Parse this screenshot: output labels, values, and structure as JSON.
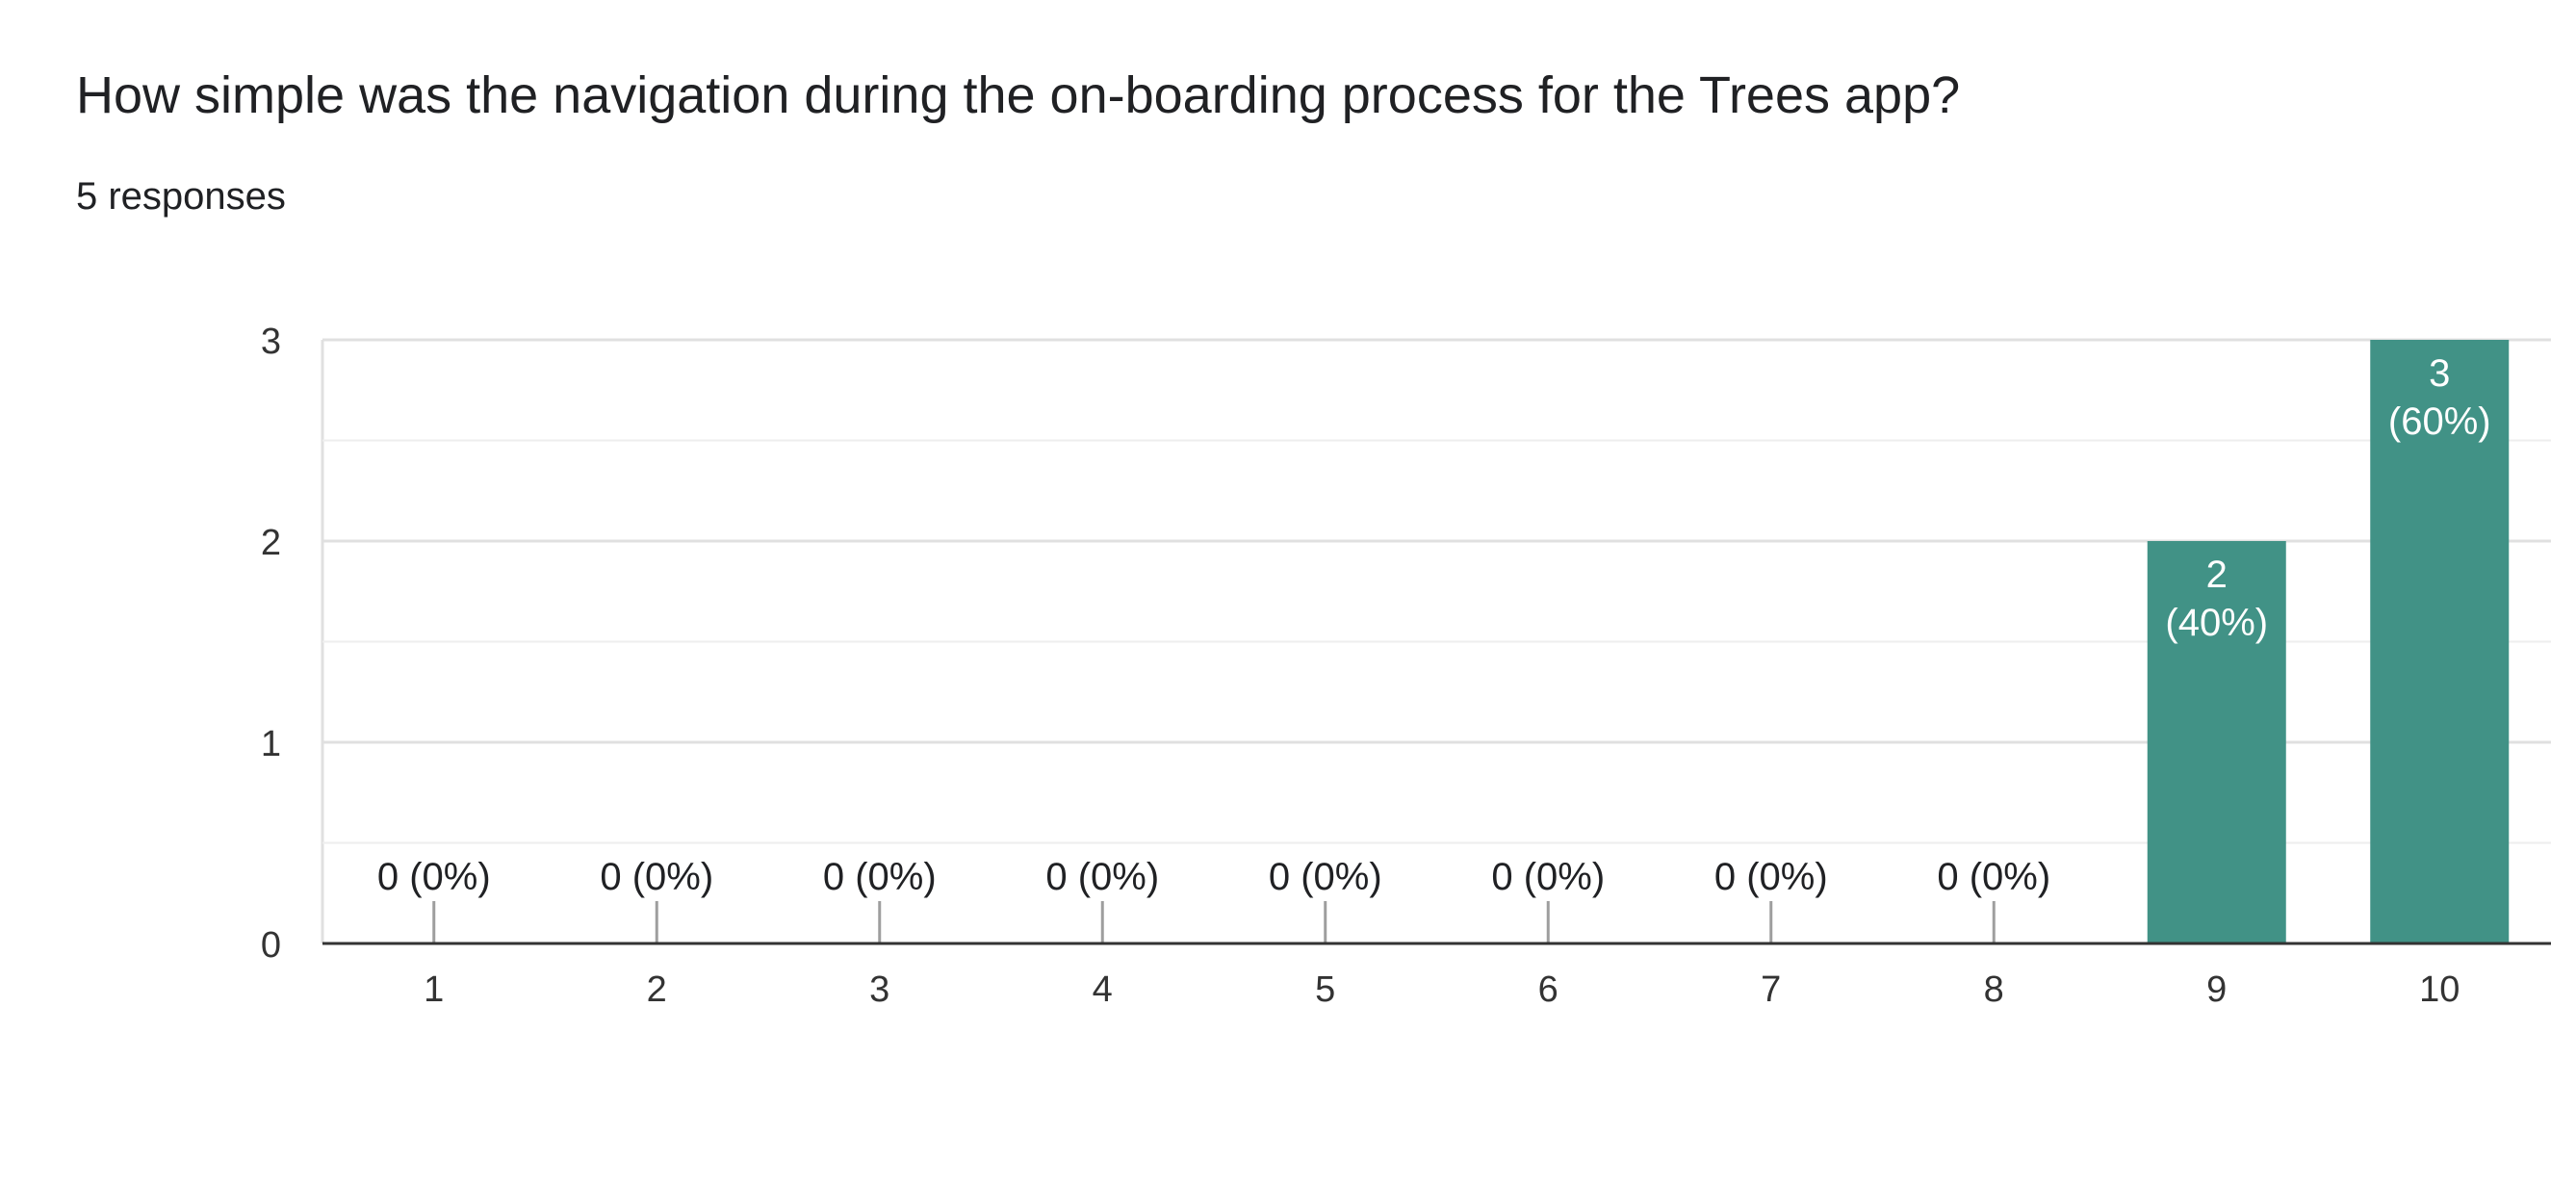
{
  "question": {
    "title": "How simple was the navigation during the on-boarding process for the Trees app?",
    "response_count": "5 responses"
  },
  "colors": {
    "bar": "#419286",
    "bar_label": "#ffffff",
    "text": "#202124",
    "tick_text": "#333333",
    "grid_major": "#e0e0e0",
    "grid_minor": "#eeeeee",
    "baseline": "#333333",
    "zero_marker": "#9e9e9e"
  },
  "chart_data": {
    "type": "bar",
    "categories": [
      "1",
      "2",
      "3",
      "4",
      "5",
      "6",
      "7",
      "8",
      "9",
      "10"
    ],
    "values": [
      0,
      0,
      0,
      0,
      0,
      0,
      0,
      0,
      2,
      3
    ],
    "data_labels": [
      "0 (0%)",
      "0 (0%)",
      "0 (0%)",
      "0 (0%)",
      "0 (0%)",
      "0 (0%)",
      "0 (0%)",
      "0 (0%)",
      "2 (40%)",
      "3 (60%)"
    ],
    "yticks": [
      0,
      1,
      2,
      3
    ],
    "ylim": [
      0,
      3
    ],
    "minor_gridlines": [
      0.5,
      1.5,
      2.5
    ],
    "grid": true,
    "legend": "none",
    "title": "",
    "xlabel": "",
    "ylabel": ""
  }
}
